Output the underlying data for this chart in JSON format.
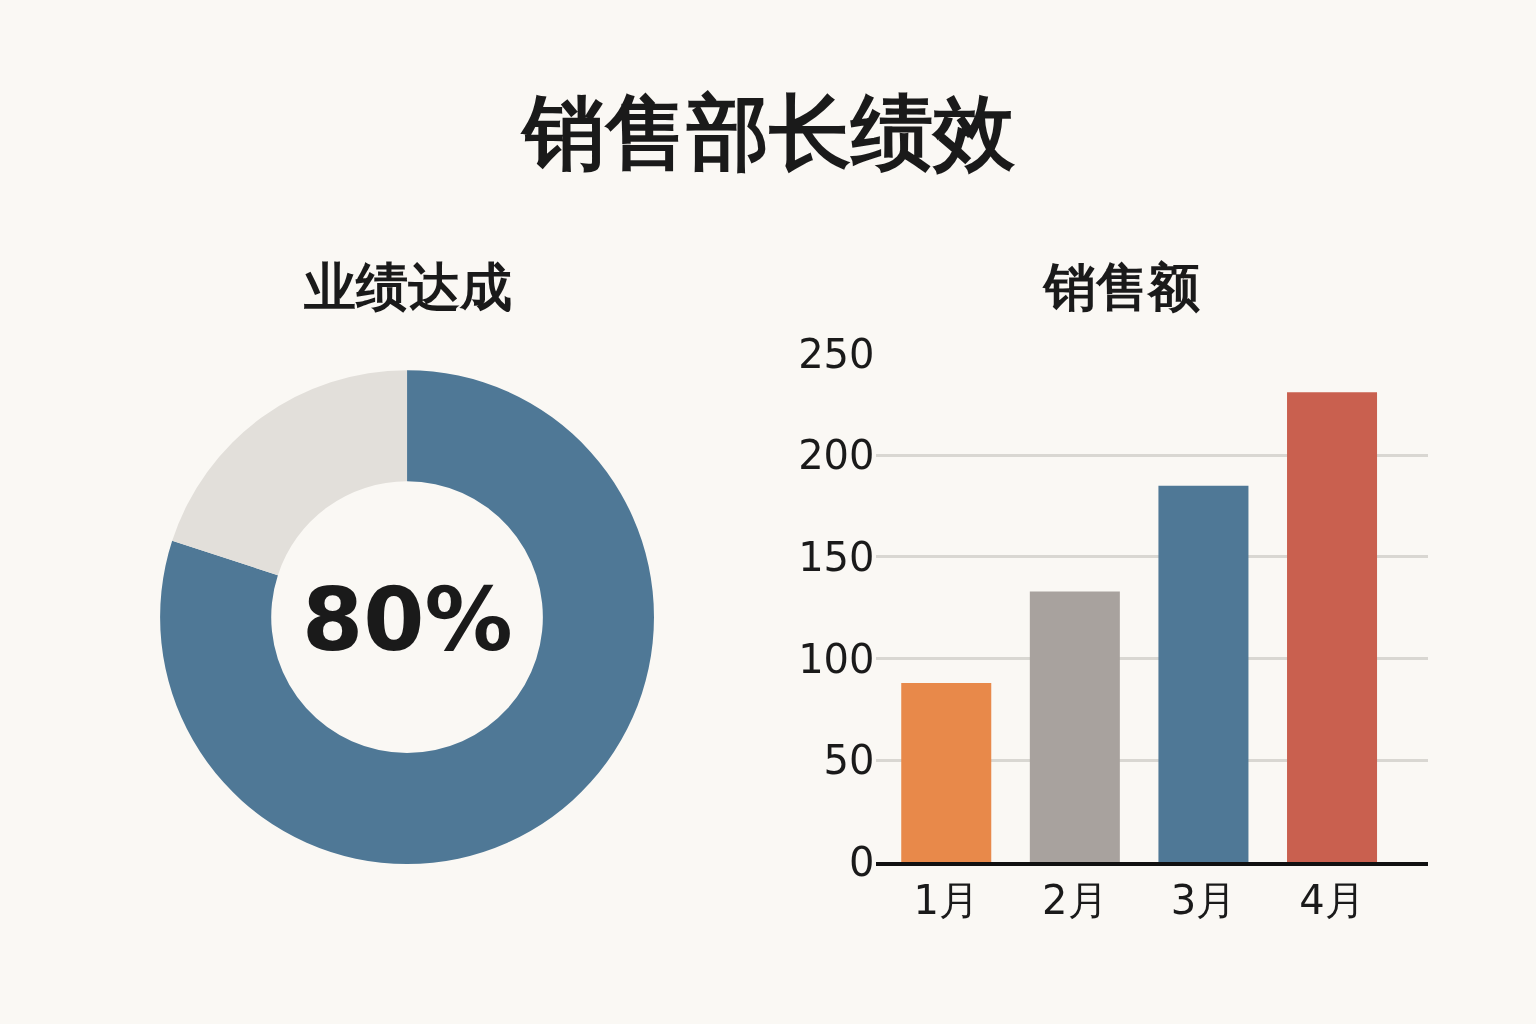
{
  "chart_data": [
    {
      "type": "other",
      "title": "销售部长绩效"
    },
    {
      "type": "donut",
      "title": "业绩达成",
      "categories": [
        null,
        null
      ],
      "values": [
        80,
        20
      ],
      "colors": [
        "#4f7896",
        "#e2dfda"
      ],
      "annotations": [
        "80%"
      ]
    },
    {
      "type": "bar",
      "title": "销售额",
      "categories": [
        "1月",
        "2月",
        "3月",
        "4月"
      ],
      "values": [
        88,
        133,
        185,
        231
      ],
      "colors": [
        "#e8894a",
        "#a8a29e",
        "#4f7896",
        "#c9604f"
      ],
      "ylim": [
        0,
        250
      ],
      "yticks": [
        0,
        50,
        100,
        150,
        200,
        250
      ],
      "grid": "y"
    }
  ]
}
